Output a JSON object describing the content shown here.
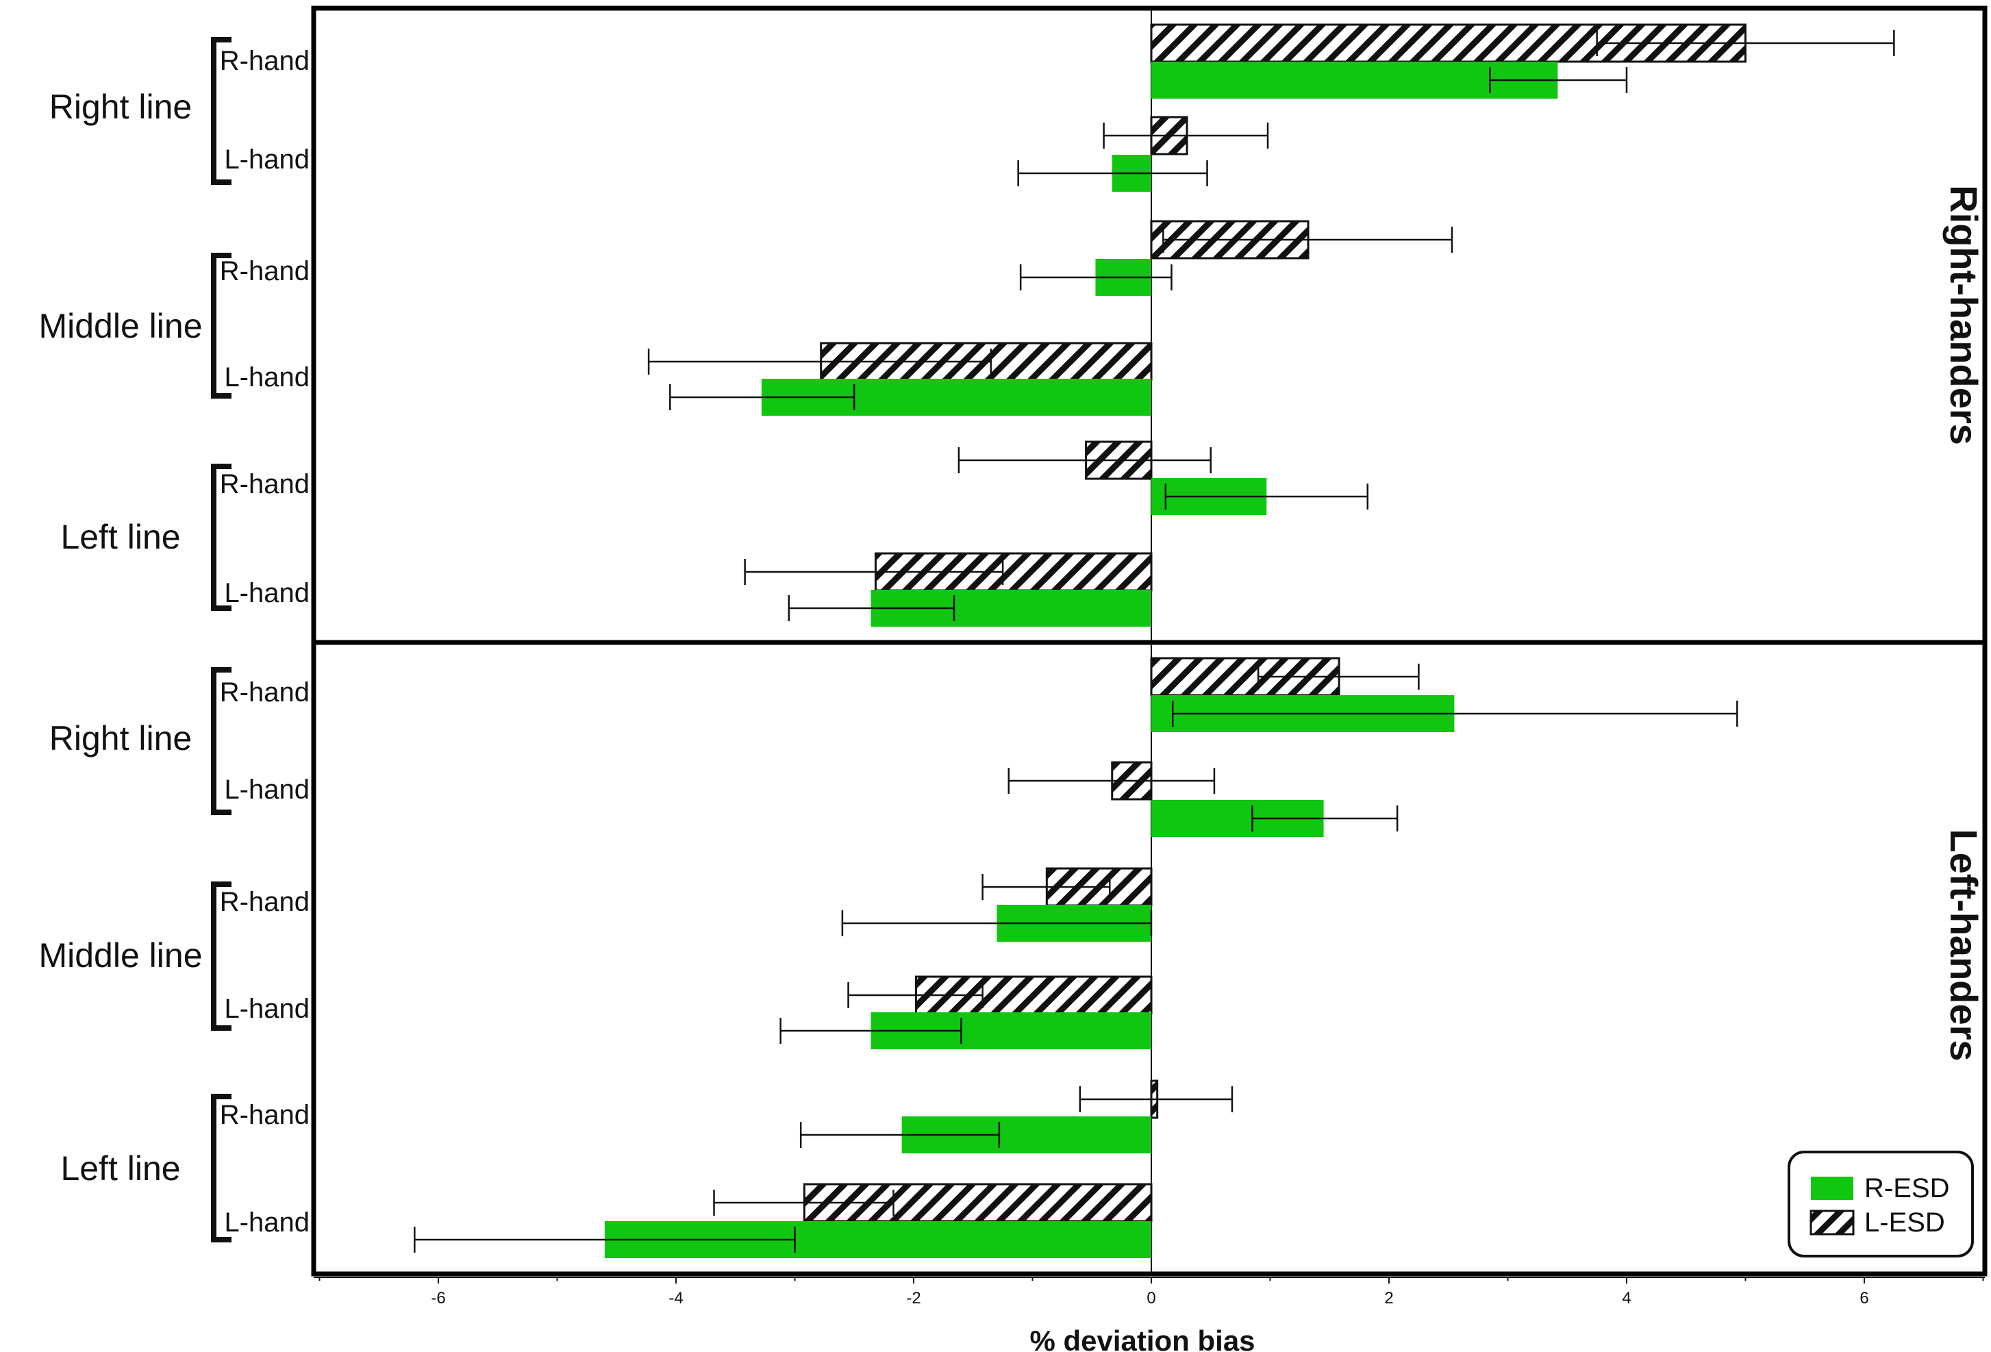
{
  "chart_data": {
    "type": "bar",
    "orientation": "horizontal",
    "xlabel": "% deviation bias",
    "xlim": [
      -7,
      7
    ],
    "xticks": [
      -6,
      -4,
      -2,
      0,
      2,
      4,
      6
    ],
    "legend": {
      "position": "bottom-right",
      "entries": [
        {
          "key": "R-ESD",
          "label": "R-ESD"
        },
        {
          "key": "L-ESD",
          "label": "L-ESD"
        }
      ]
    },
    "colors": {
      "r_esd": "#11c611",
      "l_esd_stroke": "#111111",
      "frame": "#000000"
    },
    "panels": [
      {
        "name": "Right-handers",
        "groups": [
          {
            "name": "Right line",
            "rows": [
              {
                "hand": "R-hand",
                "l_esd": {
                  "value": 5.0,
                  "err_low": 3.75,
                  "err_high": 6.25
                },
                "r_esd": {
                  "value": 3.42,
                  "err_low": 2.85,
                  "err_high": 4.0
                }
              },
              {
                "hand": "L-hand",
                "l_esd": {
                  "value": 0.3,
                  "err_low": -0.4,
                  "err_high": 0.98
                },
                "r_esd": {
                  "value": -0.33,
                  "err_low": -1.12,
                  "err_high": 0.47
                }
              }
            ]
          },
          {
            "name": "Middle line",
            "rows": [
              {
                "hand": "R-hand",
                "l_esd": {
                  "value": 1.32,
                  "err_low": 0.1,
                  "err_high": 2.53
                },
                "r_esd": {
                  "value": -0.47,
                  "err_low": -1.1,
                  "err_high": 0.17
                }
              },
              {
                "hand": "L-hand",
                "l_esd": {
                  "value": -2.78,
                  "err_low": -4.23,
                  "err_high": -1.35
                },
                "r_esd": {
                  "value": -3.28,
                  "err_low": -4.05,
                  "err_high": -2.5
                }
              }
            ]
          },
          {
            "name": "Left line",
            "rows": [
              {
                "hand": "R-hand",
                "l_esd": {
                  "value": -0.55,
                  "err_low": -1.62,
                  "err_high": 0.5
                },
                "r_esd": {
                  "value": 0.97,
                  "err_low": 0.12,
                  "err_high": 1.82
                }
              },
              {
                "hand": "L-hand",
                "l_esd": {
                  "value": -2.32,
                  "err_low": -3.42,
                  "err_high": -1.25
                },
                "r_esd": {
                  "value": -2.36,
                  "err_low": -3.05,
                  "err_high": -1.66
                }
              }
            ]
          }
        ]
      },
      {
        "name": "Left-handers",
        "groups": [
          {
            "name": "Right line",
            "rows": [
              {
                "hand": "R-hand",
                "l_esd": {
                  "value": 1.58,
                  "err_low": 0.9,
                  "err_high": 2.25
                },
                "r_esd": {
                  "value": 2.55,
                  "err_low": 0.18,
                  "err_high": 4.93
                }
              },
              {
                "hand": "L-hand",
                "l_esd": {
                  "value": -0.33,
                  "err_low": -1.2,
                  "err_high": 0.53
                },
                "r_esd": {
                  "value": 1.45,
                  "err_low": 0.85,
                  "err_high": 2.07
                }
              }
            ]
          },
          {
            "name": "Middle line",
            "rows": [
              {
                "hand": "R-hand",
                "l_esd": {
                  "value": -0.88,
                  "err_low": -1.42,
                  "err_high": -0.35
                },
                "r_esd": {
                  "value": -1.3,
                  "err_low": -2.6,
                  "err_high": 0.0
                }
              },
              {
                "hand": "L-hand",
                "l_esd": {
                  "value": -1.98,
                  "err_low": -2.55,
                  "err_high": -1.42
                },
                "r_esd": {
                  "value": -2.36,
                  "err_low": -3.12,
                  "err_high": -1.6
                }
              }
            ]
          },
          {
            "name": "Left line",
            "rows": [
              {
                "hand": "R-hand",
                "l_esd": {
                  "value": 0.05,
                  "err_low": -0.6,
                  "err_high": 0.68
                },
                "r_esd": {
                  "value": -2.1,
                  "err_low": -2.95,
                  "err_high": -1.28
                }
              },
              {
                "hand": "L-hand",
                "l_esd": {
                  "value": -2.92,
                  "err_low": -3.68,
                  "err_high": -2.17
                },
                "r_esd": {
                  "value": -4.6,
                  "err_low": -6.2,
                  "err_high": -3.0
                }
              }
            ]
          }
        ]
      }
    ]
  }
}
